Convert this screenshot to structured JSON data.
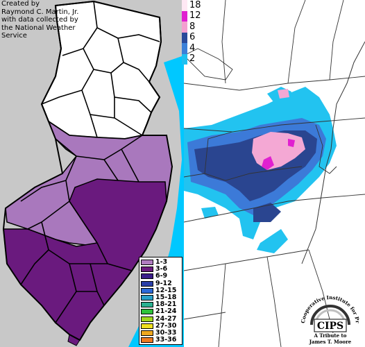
{
  "credit": {
    "line1": "Created by",
    "line2": "Raymond C. Martin, Jr.",
    "line3": "with data collected by",
    "line4": "the National Weather",
    "line5": "Service"
  },
  "legend": {
    "items": [
      {
        "label": "1-3",
        "color": "#b07cc0"
      },
      {
        "label": "3-6",
        "color": "#6a1a7e"
      },
      {
        "label": "6-9",
        "color": "#3a1c8a"
      },
      {
        "label": "9-12",
        "color": "#2a3ea8"
      },
      {
        "label": "12-15",
        "color": "#2d6ad8"
      },
      {
        "label": "15-18",
        "color": "#2aa0c8"
      },
      {
        "label": "18-21",
        "color": "#2ab090"
      },
      {
        "label": "21-24",
        "color": "#2ec23a"
      },
      {
        "label": "24-27",
        "color": "#a0d820"
      },
      {
        "label": "27-30",
        "color": "#f0e020"
      },
      {
        "label": "30-33",
        "color": "#f0a820"
      },
      {
        "label": "33-36",
        "color": "#f07a20"
      }
    ]
  },
  "scale": {
    "items": [
      {
        "label": "18",
        "color": "#ffe8f4"
      },
      {
        "label": "12",
        "color": "#e020d0"
      },
      {
        "label": "8",
        "color": "#f4a0d0"
      },
      {
        "label": "6",
        "color": "#2a4a9a"
      },
      {
        "label": "4",
        "color": "#3c80d8"
      },
      {
        "label": "2",
        "color": "#20c0f0"
      }
    ]
  },
  "cips": {
    "arc_text": "Cooperative Institute for Precipitation Systems",
    "logo": "CIPS",
    "tribute1": "A Tribute to",
    "tribute2": "James T. Moore"
  },
  "colors": {
    "ocean_left": "#c8c8c8",
    "ocean_right": "#ffffff",
    "light_purple": "#a978bd",
    "dark_purple": "#6a1a7e",
    "cyan": "#22c3f0",
    "mid_blue": "#3c7ad8",
    "navy": "#2a4590",
    "pink": "#f4a8d4",
    "magenta": "#e020d0"
  }
}
